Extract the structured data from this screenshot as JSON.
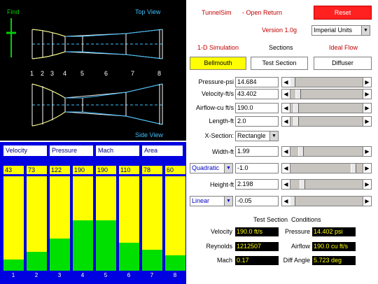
{
  "tunnel_view": {
    "find_label": "Find",
    "top_view_label": "Top View",
    "side_view_label": "Side View",
    "stations": [
      "1",
      "2",
      "3",
      "4",
      "5",
      "6",
      "7",
      "8"
    ]
  },
  "bar_panel": {
    "headers": [
      "Velocity",
      "Pressure",
      "Mach",
      "Area"
    ],
    "values": [
      "43",
      "73",
      "122",
      "190",
      "190",
      "110",
      "78",
      "60"
    ],
    "column_labels": [
      "1",
      "2",
      "3",
      "4",
      "5",
      "6",
      "7",
      "8"
    ],
    "fill_fractions": [
      0.12,
      0.2,
      0.34,
      0.53,
      0.53,
      0.3,
      0.22,
      0.16
    ]
  },
  "header": {
    "title": "TunnelSim",
    "subtitle": "- Open Return",
    "reset_label": "Reset",
    "version": "Version 1.0g",
    "units_value": "Imperial Units"
  },
  "modes": {
    "simulation": "1-D Simulation",
    "sections": "Sections",
    "flow": "Ideal Flow"
  },
  "tabs": {
    "bellmouth": "Bellmouth",
    "test_section": "Test Section",
    "diffuser": "Diffuser"
  },
  "params": [
    {
      "label": "Pressure-psi",
      "value": "14.684",
      "thumb": 0.0
    },
    {
      "label": "Velocity-ft/s",
      "value": "43.402",
      "thumb": 0.08
    },
    {
      "label": "Airflow-cu ft/s",
      "value": "190.0",
      "thumb": 0.05
    },
    {
      "label": "Length-ft",
      "value": "2.0",
      "thumb": 0.05
    }
  ],
  "xsection": {
    "label": "X-Section:",
    "value": "Rectangle"
  },
  "width": {
    "label": "Width-ft",
    "value": "1.99",
    "thumb": 0.12
  },
  "width_mod": {
    "select": "Quadratic",
    "value": "-1.0",
    "thumb": 0.9
  },
  "height": {
    "label": "Height-ft",
    "value": "2.198",
    "thumb": 0.14
  },
  "height_mod": {
    "select": "Linear",
    "value": "-0.05",
    "thumb": 0.0
  },
  "conditions": {
    "title": "Test Section  Conditions",
    "velocity_label": "Velocity",
    "velocity": "190.0 ft/s",
    "pressure_label": "Pressure",
    "pressure": "14.402 psi",
    "reynolds_label": "Reynolds",
    "reynolds": "1212507",
    "airflow_label": "Airflow",
    "airflow": "190.0 cu ft/s",
    "mach_label": "Mach",
    "mach": "0.17",
    "diffangle_label": "Diff Angle",
    "diffangle": "5.723 deg"
  },
  "colors": {
    "accent_yellow": "#ffff00",
    "bar_green": "#00e000",
    "panel_blue": "#0000e0",
    "reset_red": "#ff2020"
  }
}
